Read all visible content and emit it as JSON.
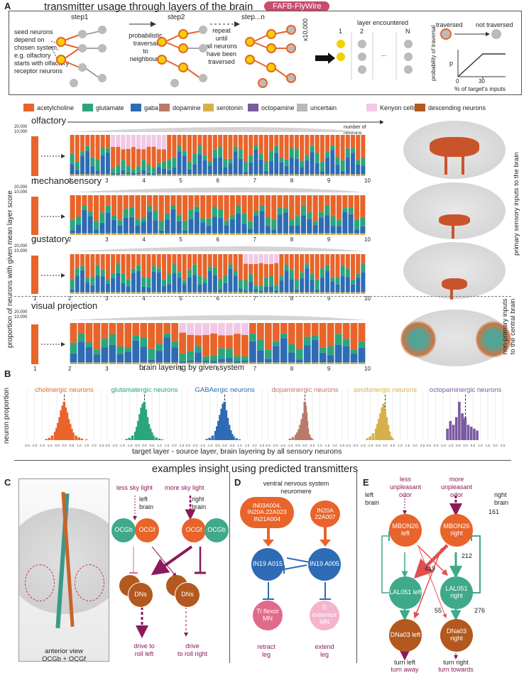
{
  "panelA": {
    "letter": "A",
    "title": "transmitter usage through layers of the brain",
    "badge": "FAFB-FlyWire",
    "seed_text": [
      "seed neurons",
      "depend on",
      "chosen system,",
      "e.g. olfactory",
      "starts with olfactory",
      "receptor neurons"
    ],
    "step1": "step1",
    "step2": "step2",
    "stepn": "step...n",
    "prob_text": [
      "probabilistic",
      "traversal",
      "to",
      "neighbours"
    ],
    "repeat_text": [
      "repeat",
      "until",
      "all neurons",
      "have been",
      "traversed"
    ],
    "x10000": "x10,000",
    "layer_encountered": "layer encountered",
    "layer_cols": [
      "1",
      "2",
      "...",
      "N"
    ],
    "traversed": "traversed",
    "not_traversed": "not traversed",
    "prob_axis": "probability of traversal",
    "p_label": "p",
    "zero": "0",
    "thirty": "30",
    "pct_label": "% of target's inputs",
    "legend": [
      {
        "name": "acetylcholine",
        "color": "#e8642a"
      },
      {
        "name": "glutamate",
        "color": "#2ba57e"
      },
      {
        "name": "gaba",
        "color": "#2e6bb5"
      },
      {
        "name": "dopamine",
        "color": "#b97a6a"
      },
      {
        "name": "serotonin",
        "color": "#d6b04a"
      },
      {
        "name": "octopamine",
        "color": "#7a5aa0"
      },
      {
        "name": "uncertain",
        "color": "#b8b8b8"
      },
      {
        "name": "Kenyon cells",
        "color": "#f2c8e4"
      },
      {
        "name": "descending neurons",
        "color": "#b3581f"
      }
    ],
    "systems": [
      {
        "name": "olfactory",
        "ytop1": "20,000",
        "ytop2": "10,000"
      },
      {
        "name": "mechanosensory",
        "ytop1": "20,000",
        "ytop2": "10,000"
      },
      {
        "name": "gustatory",
        "ytop1": "20,000",
        "ytop2": "10,000"
      },
      {
        "name": "visual projection",
        "ytop1": "20,000",
        "ytop2": "10,000"
      }
    ],
    "number_of_neurons": "number of neurons",
    "layer_ticks": [
      "1",
      "2",
      "3",
      "4",
      "5",
      "6",
      "7",
      "8",
      "9",
      "10"
    ],
    "y_axis_label": "proportion of neurons with given mean layer score",
    "x_axis_label": "brain layering by given system",
    "side_label_1": "primary sensory inputs to the brain",
    "side_label_2": "non-primary inputs to the central brain"
  },
  "panelB": {
    "letter": "B",
    "y_label": "neuron proportion",
    "x_label": "target layer - source layer, brain layering by all sensory neurons",
    "tick_labels": [
      "-2.5",
      "-2.0",
      "-1.5",
      "-1.0",
      "-0.5",
      "0.0",
      "0.5",
      "1.0",
      "1.5",
      "2.0",
      "2.5"
    ]
  },
  "chart_data": [
    {
      "type": "bar",
      "title": "cholinergic neurons",
      "color": "#e8642a",
      "xlabel": "target layer - source layer",
      "ylabel": "neuron proportion",
      "xlim": [
        -2.5,
        2.5
      ],
      "x": [
        -1.2,
        -1.0,
        -0.8,
        -0.6,
        -0.5,
        -0.4,
        -0.3,
        -0.2,
        -0.1,
        0.0,
        0.1,
        0.2,
        0.3,
        0.4,
        0.5,
        0.6,
        0.8,
        1.0,
        1.2,
        1.5
      ],
      "values": [
        0.03,
        0.06,
        0.12,
        0.22,
        0.32,
        0.45,
        0.6,
        0.78,
        0.9,
        1.0,
        0.85,
        0.72,
        0.55,
        0.42,
        0.3,
        0.2,
        0.12,
        0.07,
        0.04,
        0.02
      ]
    },
    {
      "type": "bar",
      "title": "glutamatergic neurons",
      "color": "#2ba57e",
      "xlabel": "target layer - source layer",
      "ylabel": "neuron proportion",
      "xlim": [
        -2.5,
        2.5
      ],
      "x": [
        -1.2,
        -1.0,
        -0.8,
        -0.6,
        -0.5,
        -0.4,
        -0.3,
        -0.2,
        -0.1,
        0.0,
        0.1,
        0.2,
        0.3,
        0.4,
        0.5,
        0.6,
        0.8,
        1.0,
        1.2
      ],
      "values": [
        0.03,
        0.06,
        0.12,
        0.22,
        0.35,
        0.5,
        0.68,
        0.85,
        0.95,
        1.0,
        0.8,
        0.6,
        0.42,
        0.3,
        0.2,
        0.12,
        0.07,
        0.04,
        0.02
      ]
    },
    {
      "type": "bar",
      "title": "GABAergic neurons",
      "color": "#2e6bb5",
      "xlabel": "target layer - source layer",
      "ylabel": "neuron proportion",
      "xlim": [
        -2.5,
        2.5
      ],
      "x": [
        -1.2,
        -1.0,
        -0.8,
        -0.6,
        -0.5,
        -0.4,
        -0.3,
        -0.2,
        -0.1,
        0.0,
        0.1,
        0.2,
        0.3,
        0.4,
        0.5,
        0.6,
        0.8,
        1.0
      ],
      "values": [
        0.03,
        0.06,
        0.12,
        0.24,
        0.36,
        0.5,
        0.66,
        0.82,
        0.95,
        1.0,
        0.78,
        0.58,
        0.4,
        0.26,
        0.16,
        0.1,
        0.05,
        0.02
      ]
    },
    {
      "type": "bar",
      "title": "dopaminergic neurons",
      "color": "#b97a6a",
      "xlabel": "target layer - source layer",
      "ylabel": "neuron proportion",
      "xlim": [
        -2.5,
        2.5
      ],
      "x": [
        -1.0,
        -0.8,
        -0.6,
        -0.5,
        -0.4,
        -0.3,
        -0.2,
        -0.1,
        0.0,
        0.05,
        0.1,
        0.15,
        0.2,
        0.3,
        0.4,
        0.5
      ],
      "values": [
        0.04,
        0.08,
        0.14,
        0.2,
        0.28,
        0.4,
        0.55,
        0.7,
        1.0,
        0.9,
        0.72,
        0.5,
        0.3,
        0.15,
        0.07,
        0.03
      ]
    },
    {
      "type": "bar",
      "title": "serotonergic neurons",
      "color": "#d6b04a",
      "xlabel": "target layer - source layer",
      "ylabel": "neuron proportion",
      "xlim": [
        -2.5,
        2.5
      ],
      "x": [
        -1.2,
        -1.0,
        -0.8,
        -0.6,
        -0.5,
        -0.4,
        -0.3,
        -0.2,
        -0.1,
        0.0,
        0.1,
        0.2,
        0.3,
        0.4,
        0.5
      ],
      "values": [
        0.05,
        0.1,
        0.18,
        0.3,
        0.42,
        0.55,
        0.7,
        0.85,
        0.95,
        0.8,
        0.6,
        0.4,
        0.22,
        0.1,
        0.05
      ]
    },
    {
      "type": "bar",
      "title": "octopaminergic neurons",
      "color": "#7a5aa0",
      "xlabel": "target layer - source layer",
      "ylabel": "neuron proportion",
      "xlim": [
        -2.5,
        2.5
      ],
      "x": [
        -1.2,
        -1.0,
        -0.8,
        -0.6,
        -0.4,
        -0.2,
        -0.1,
        0.0,
        0.2,
        0.4,
        0.6,
        0.8
      ],
      "values": [
        0.3,
        0.5,
        0.4,
        0.6,
        1.0,
        0.7,
        0.55,
        0.6,
        0.4,
        0.35,
        0.3,
        0.25
      ]
    }
  ],
  "panelC": {
    "letter": "C",
    "heading": "examples insight using predicted transmitters",
    "anterior_view": "anterior view",
    "ocg_label": "OCGb + OCGf",
    "less_sky": "less sky light",
    "more_sky": "more sky light",
    "left_brain": [
      "left",
      "brain"
    ],
    "right_brain": [
      "right",
      "brain"
    ],
    "ocgb": "OCGb",
    "ocgf": "OCGf",
    "dns": "DNs",
    "drive_left": [
      "drive to",
      "roll left"
    ],
    "drive_right": [
      "drive",
      "to roll right"
    ]
  },
  "panelD": {
    "letter": "D",
    "title": [
      "ventral nervous system",
      "neuromere"
    ],
    "node1": "IN03A004, IN20A.22A023 IN21A004",
    "node2": "IN20A 22A007",
    "node3": "IN19 A015",
    "node4": "IN19 A005",
    "node5": "Ti flexor MN",
    "node6": "Ti extensor MN",
    "retract": [
      "retract",
      "leg"
    ],
    "extend": [
      "extend",
      "leg"
    ]
  },
  "panelE": {
    "letter": "E",
    "less_odor": [
      "less",
      "unpleasant",
      "odor"
    ],
    "more_odor": [
      "more",
      "unpleasant",
      "odor"
    ],
    "left_brain": [
      "left",
      "brain"
    ],
    "right_brain": [
      "right",
      "brain"
    ],
    "mbon_left": "MBON26 left",
    "mbon_right": "MBON26 right",
    "lal_left": "LAL051 left",
    "lal_right": "LAL051 right",
    "dna_left": "DNa03 left",
    "dna_right": "DNa03 right",
    "n161": "161",
    "n212": "212",
    "n419": "419",
    "n55": "55",
    "n276": "276",
    "turn_left": "turn left",
    "turn_away": "turn away",
    "turn_right": "turn right",
    "turn_towards": "turn towards"
  }
}
